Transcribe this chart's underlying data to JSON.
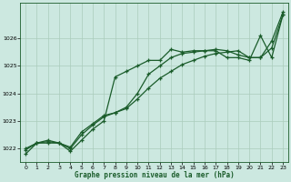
{
  "bg_color": "#cce8e0",
  "grid_color": "#aaccbb",
  "line_color": "#1a5c2a",
  "title": "Graphe pression niveau de la mer (hPa)",
  "ylim": [
    1021.5,
    1027.3
  ],
  "xlim": [
    -0.5,
    23.5
  ],
  "yticks": [
    1022,
    1023,
    1024,
    1025,
    1026
  ],
  "xticks": [
    0,
    1,
    2,
    3,
    4,
    5,
    6,
    7,
    8,
    9,
    10,
    11,
    12,
    13,
    14,
    15,
    16,
    17,
    18,
    19,
    20,
    21,
    22,
    23
  ],
  "series1": [
    1021.8,
    1022.2,
    1022.2,
    1022.2,
    1021.9,
    1022.3,
    1022.7,
    1023.0,
    1024.6,
    1024.8,
    1025.0,
    1025.2,
    1025.2,
    1025.6,
    1025.5,
    1025.55,
    1025.55,
    1025.55,
    1025.3,
    1025.3,
    1025.2,
    1026.1,
    1025.3,
    1026.85
  ],
  "series2": [
    1021.95,
    1022.2,
    1022.25,
    1022.2,
    1022.0,
    1022.5,
    1022.85,
    1023.15,
    1023.3,
    1023.45,
    1023.8,
    1024.2,
    1024.55,
    1024.8,
    1025.05,
    1025.2,
    1025.35,
    1025.45,
    1025.5,
    1025.55,
    1025.3,
    1025.3,
    1025.65,
    1026.85
  ],
  "series3": [
    1022.0,
    1022.2,
    1022.3,
    1022.2,
    1022.05,
    1022.6,
    1022.9,
    1023.2,
    1023.3,
    1023.5,
    1024.0,
    1024.7,
    1025.0,
    1025.3,
    1025.45,
    1025.5,
    1025.55,
    1025.6,
    1025.55,
    1025.4,
    1025.3,
    1025.3,
    1025.9,
    1026.95
  ]
}
